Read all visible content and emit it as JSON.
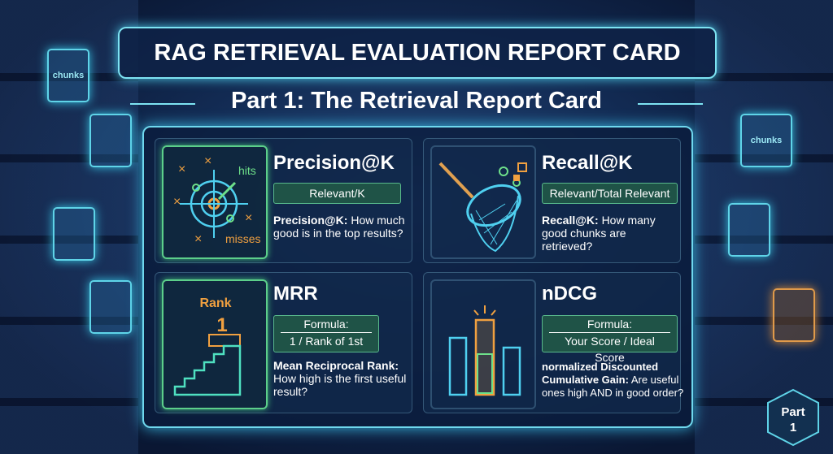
{
  "header": {
    "title": "RAG RETRIEVAL EVALUATION REPORT CARD",
    "subtitle": "Part 1: The Retrieval Report Card"
  },
  "cards": [
    {
      "title": "Precision@K",
      "formula": "Relevant/K",
      "desc_term": "Precision@K:",
      "desc_text": "How much good is in the top results?",
      "icon_labels": [
        "hits",
        "misses"
      ]
    },
    {
      "title": "Recall@K",
      "formula": "Relevant/Total Relevant",
      "desc_term": "Recall@K:",
      "desc_text": "How many good chunks are retrieved?"
    },
    {
      "title": "MRR",
      "formula_label": "Formula:",
      "formula": "1 / Rank of 1st",
      "desc_term": "Mean Reciprocal Rank:",
      "desc_text": "How high is the first useful result?",
      "icon_labels": [
        "Rank",
        "1"
      ]
    },
    {
      "title": "nDCG",
      "formula_label": "Formula:",
      "formula": "Your Score / Ideal Score",
      "desc_term": "normalized Discounted Cumulative Gain:",
      "desc_text": "Are useful ones high AND in good order?"
    }
  ],
  "background": {
    "labels": [
      "chunks",
      "chunks"
    ]
  },
  "badge": {
    "line1": "Part",
    "line2": "1"
  }
}
